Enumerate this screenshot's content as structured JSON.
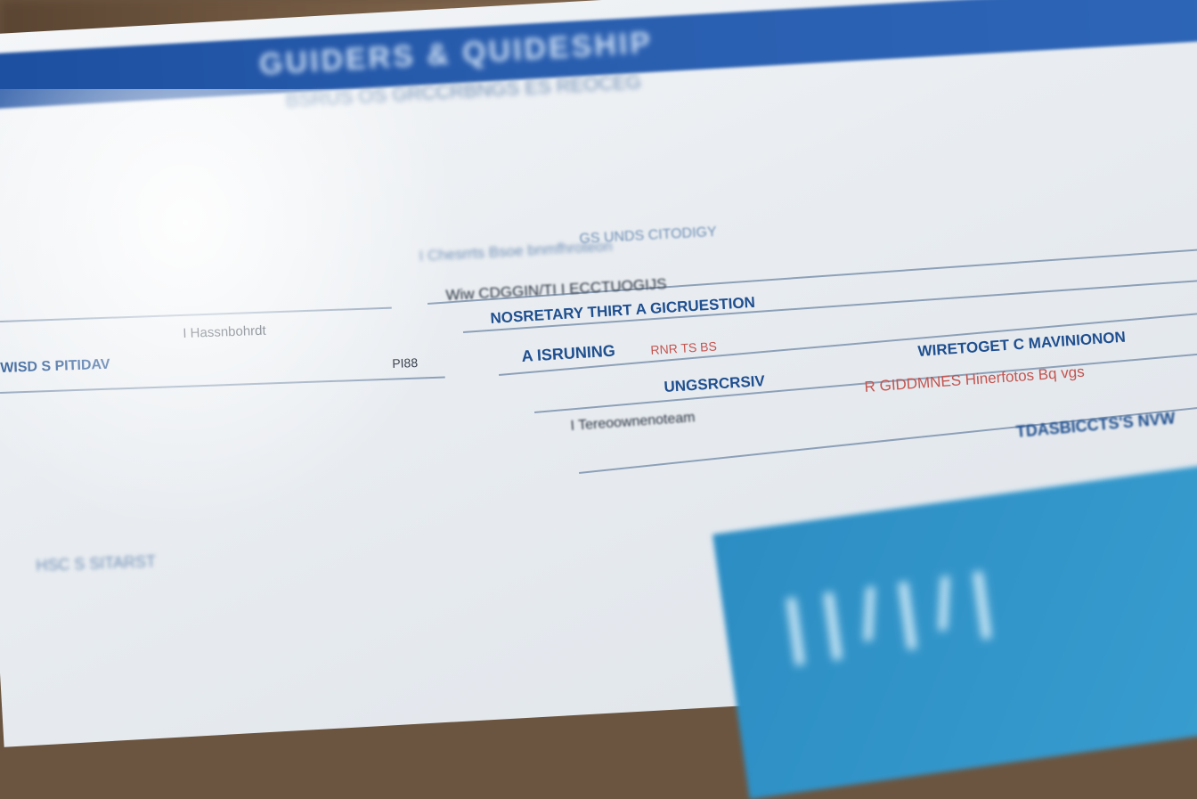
{
  "header": {
    "title": "GUIDERS & QUIDESHIP"
  },
  "rows": [
    {
      "text": "BSRUS OS GRCCRBNGS ES REOCEG",
      "cls": "lite blur3"
    },
    {
      "text": "I Chesrrts Bsoe bnmfhroteon",
      "cls": "lite blur2"
    },
    {
      "text": "Wiw CDGGIN/TI I ECCTUOGIJS",
      "cls": "dark blur1"
    },
    {
      "text": "NOSRETARY THIRT A GICRUESTION",
      "cls": "blue"
    },
    {
      "text": "A ISRUNING",
      "cls": "blue"
    },
    {
      "text": "RNR TS BS",
      "cls": "red"
    },
    {
      "text": "UNGSRCRSIV",
      "cls": "blue"
    },
    {
      "text": "I Tereoownenoteam",
      "cls": "dark blur1"
    },
    {
      "text": "GS UNDS CITODIGY",
      "cls": "lite blur1"
    },
    {
      "text": "WIRETOGET C MAVINIONON",
      "cls": "blue"
    },
    {
      "text": "R GIDDMNES Hinerfotos Bq vgs",
      "cls": "red"
    },
    {
      "text": "TDASBICCTS'S NVW",
      "cls": "blue blur1"
    },
    {
      "text": "I Hassnbohrdt",
      "cls": "dark"
    },
    {
      "text": "WISD S PITIDAV",
      "cls": "blue"
    },
    {
      "text": "PI88",
      "cls": "dark"
    },
    {
      "text": "HSC S SITARST",
      "cls": "lite blur2"
    }
  ],
  "accent": "#1f4f8f",
  "header_color": "#2a5fb0",
  "panel_color": "#3aa0d2"
}
